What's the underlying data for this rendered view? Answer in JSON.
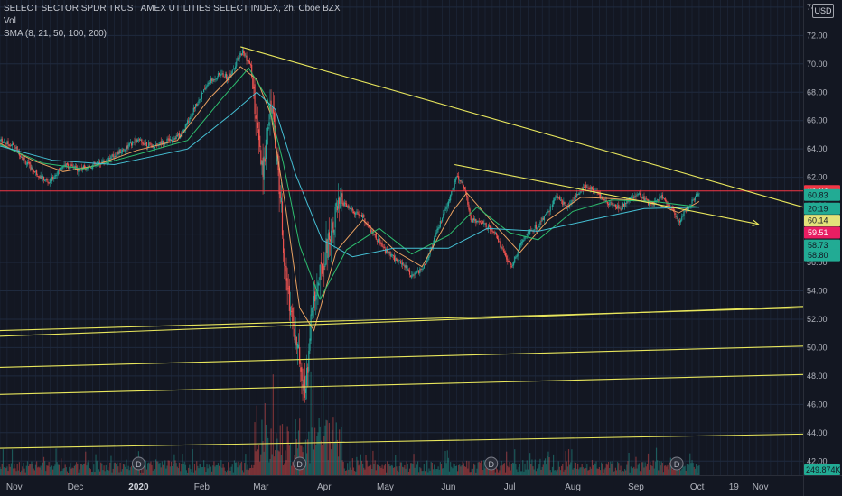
{
  "legend": {
    "title": "SELECT SECTOR SPDR TRUST AMEX UTILITIES SELECT INDEX, 2h, Cboe BZX",
    "volume": "Vol",
    "sma": "SMA (8, 21, 50, 100, 200)"
  },
  "currency_button": "USD",
  "colors": {
    "background": "#131722",
    "grid": "#1f2a3e",
    "candle_up": "#26a69a",
    "candle_down": "#ef5350",
    "trendline": "#e8e65c",
    "sma_fast": "#e9a060",
    "sma_mid": "#2dbd6e",
    "sma_slow": "#45c0d4",
    "price_tag_red": "#f23645",
    "price_tag_green": "#22ab94",
    "price_tag_yellow": "#e3e37a",
    "price_tag_magenta": "#e91e63"
  },
  "chart_data": {
    "type": "candlestick",
    "y_axis": {
      "min": 41,
      "max": 74.5,
      "ticks": [
        "42.00",
        "44.00",
        "46.00",
        "48.00",
        "50.00",
        "52.00",
        "54.00",
        "56.00",
        "58.00",
        "60.00",
        "62.00",
        "64.00",
        "66.00",
        "68.00",
        "70.00",
        "72.00",
        "74.00"
      ]
    },
    "x_axis": {
      "start": "2019-10-25",
      "end": "2020-11-22",
      "ticks": [
        {
          "label": "Nov",
          "date": "2019-11-01",
          "bold": false
        },
        {
          "label": "Dec",
          "date": "2019-12-01",
          "bold": false
        },
        {
          "label": "2020",
          "date": "2020-01-01",
          "bold": true
        },
        {
          "label": "Feb",
          "date": "2020-02-01",
          "bold": false
        },
        {
          "label": "Mar",
          "date": "2020-03-01",
          "bold": false
        },
        {
          "label": "Apr",
          "date": "2020-04-01",
          "bold": false
        },
        {
          "label": "May",
          "date": "2020-05-01",
          "bold": false
        },
        {
          "label": "Jun",
          "date": "2020-06-01",
          "bold": false
        },
        {
          "label": "Jul",
          "date": "2020-07-01",
          "bold": false
        },
        {
          "label": "Aug",
          "date": "2020-08-01",
          "bold": false
        },
        {
          "label": "Sep",
          "date": "2020-09-01",
          "bold": false
        },
        {
          "label": "Oct",
          "date": "2020-10-01",
          "bold": false
        },
        {
          "label": "19",
          "date": "2020-10-19",
          "bold": false
        },
        {
          "label": "Nov",
          "date": "2020-11-01",
          "bold": false
        }
      ]
    },
    "close_path": [
      [
        "2019-10-25",
        64.6
      ],
      [
        "2019-11-01",
        64.2
      ],
      [
        "2019-11-07",
        63.0
      ],
      [
        "2019-11-11",
        62.4
      ],
      [
        "2019-11-18",
        61.6
      ],
      [
        "2019-11-25",
        62.9
      ],
      [
        "2019-12-02",
        62.6
      ],
      [
        "2019-12-09",
        62.8
      ],
      [
        "2019-12-16",
        63.2
      ],
      [
        "2019-12-23",
        63.8
      ],
      [
        "2019-12-31",
        64.6
      ],
      [
        "2020-01-08",
        64.2
      ],
      [
        "2020-01-15",
        64.6
      ],
      [
        "2020-01-22",
        65.0
      ],
      [
        "2020-01-28",
        66.8
      ],
      [
        "2020-02-04",
        68.6
      ],
      [
        "2020-02-10",
        69.3
      ],
      [
        "2020-02-14",
        69.0
      ],
      [
        "2020-02-19",
        70.4
      ],
      [
        "2020-02-21",
        70.9
      ],
      [
        "2020-02-25",
        69.8
      ],
      [
        "2020-02-28",
        65.5
      ],
      [
        "2020-03-02",
        61.8
      ],
      [
        "2020-03-04",
        65.8
      ],
      [
        "2020-03-06",
        67.3
      ],
      [
        "2020-03-09",
        63.2
      ],
      [
        "2020-03-11",
        59.8
      ],
      [
        "2020-03-13",
        55.0
      ],
      [
        "2020-03-16",
        52.5
      ],
      [
        "2020-03-18",
        50.6
      ],
      [
        "2020-03-20",
        49.2
      ],
      [
        "2020-03-23",
        46.8
      ],
      [
        "2020-03-25",
        51.2
      ],
      [
        "2020-03-27",
        53.4
      ],
      [
        "2020-03-31",
        55.6
      ],
      [
        "2020-04-03",
        57.6
      ],
      [
        "2020-04-07",
        59.6
      ],
      [
        "2020-04-10",
        60.2
      ],
      [
        "2020-04-15",
        59.6
      ],
      [
        "2020-04-20",
        59.2
      ],
      [
        "2020-04-24",
        58.2
      ],
      [
        "2020-04-30",
        57.0
      ],
      [
        "2020-05-06",
        56.2
      ],
      [
        "2020-05-11",
        55.8
      ],
      [
        "2020-05-14",
        55.0
      ],
      [
        "2020-05-19",
        55.5
      ],
      [
        "2020-05-22",
        56.4
      ],
      [
        "2020-05-27",
        58.4
      ],
      [
        "2020-06-01",
        60.2
      ],
      [
        "2020-06-05",
        62.1
      ],
      [
        "2020-06-09",
        61.3
      ],
      [
        "2020-06-12",
        59.0
      ],
      [
        "2020-06-18",
        58.8
      ],
      [
        "2020-06-24",
        58.0
      ],
      [
        "2020-06-29",
        56.4
      ],
      [
        "2020-07-02",
        55.8
      ],
      [
        "2020-07-07",
        57.4
      ],
      [
        "2020-07-10",
        58.1
      ],
      [
        "2020-07-15",
        58.6
      ],
      [
        "2020-07-20",
        59.6
      ],
      [
        "2020-07-24",
        60.7
      ],
      [
        "2020-07-29",
        59.9
      ],
      [
        "2020-08-03",
        60.8
      ],
      [
        "2020-08-07",
        61.4
      ],
      [
        "2020-08-12",
        61.0
      ],
      [
        "2020-08-18",
        60.2
      ],
      [
        "2020-08-24",
        59.8
      ],
      [
        "2020-08-28",
        60.4
      ],
      [
        "2020-09-02",
        60.8
      ],
      [
        "2020-09-08",
        60.1
      ],
      [
        "2020-09-14",
        60.6
      ],
      [
        "2020-09-18",
        59.9
      ],
      [
        "2020-09-22",
        58.8
      ],
      [
        "2020-09-24",
        59.4
      ],
      [
        "2020-09-28",
        60.2
      ],
      [
        "2020-10-01",
        60.8
      ],
      [
        "2020-10-02",
        61.0
      ]
    ],
    "sma_lines": [
      {
        "name": "sma_fast",
        "points": [
          [
            "2019-10-25",
            64.4
          ],
          [
            "2019-11-10",
            63.2
          ],
          [
            "2019-11-25",
            62.4
          ],
          [
            "2019-12-10",
            62.8
          ],
          [
            "2019-12-31",
            63.9
          ],
          [
            "2020-01-20",
            64.6
          ],
          [
            "2020-02-05",
            67.6
          ],
          [
            "2020-02-20",
            69.8
          ],
          [
            "2020-02-28",
            68.9
          ],
          [
            "2020-03-06",
            66.4
          ],
          [
            "2020-03-13",
            60.0
          ],
          [
            "2020-03-20",
            52.8
          ],
          [
            "2020-03-27",
            51.2
          ],
          [
            "2020-04-07",
            56.8
          ],
          [
            "2020-04-20",
            59.0
          ],
          [
            "2020-05-06",
            56.8
          ],
          [
            "2020-05-19",
            55.7
          ],
          [
            "2020-06-03",
            59.6
          ],
          [
            "2020-06-10",
            60.9
          ],
          [
            "2020-06-24",
            58.6
          ],
          [
            "2020-07-06",
            56.7
          ],
          [
            "2020-07-20",
            59.0
          ],
          [
            "2020-08-05",
            60.6
          ],
          [
            "2020-08-20",
            60.5
          ],
          [
            "2020-09-08",
            60.3
          ],
          [
            "2020-09-22",
            59.5
          ],
          [
            "2020-10-02",
            60.3
          ]
        ]
      },
      {
        "name": "sma_mid",
        "points": [
          [
            "2019-10-25",
            64.3
          ],
          [
            "2019-11-15",
            63.0
          ],
          [
            "2019-12-05",
            62.6
          ],
          [
            "2019-12-31",
            63.6
          ],
          [
            "2020-01-25",
            64.6
          ],
          [
            "2020-02-10",
            67.4
          ],
          [
            "2020-02-24",
            69.7
          ],
          [
            "2020-03-04",
            67.6
          ],
          [
            "2020-03-12",
            63.0
          ],
          [
            "2020-03-20",
            57.2
          ],
          [
            "2020-03-30",
            53.4
          ],
          [
            "2020-04-12",
            56.9
          ],
          [
            "2020-04-28",
            58.4
          ],
          [
            "2020-05-14",
            56.6
          ],
          [
            "2020-06-01",
            57.9
          ],
          [
            "2020-06-15",
            59.9
          ],
          [
            "2020-07-01",
            58.1
          ],
          [
            "2020-07-15",
            57.6
          ],
          [
            "2020-08-01",
            59.6
          ],
          [
            "2020-08-20",
            60.4
          ],
          [
            "2020-09-10",
            60.3
          ],
          [
            "2020-10-02",
            59.9
          ]
        ]
      },
      {
        "name": "sma_slow",
        "points": [
          [
            "2019-10-25",
            64.2
          ],
          [
            "2019-11-20",
            63.2
          ],
          [
            "2019-12-20",
            62.9
          ],
          [
            "2020-01-25",
            64.0
          ],
          [
            "2020-02-15",
            66.4
          ],
          [
            "2020-02-28",
            68.0
          ],
          [
            "2020-03-08",
            66.8
          ],
          [
            "2020-03-18",
            62.2
          ],
          [
            "2020-03-31",
            57.6
          ],
          [
            "2020-04-15",
            56.4
          ],
          [
            "2020-05-05",
            57.0
          ],
          [
            "2020-06-01",
            57.0
          ],
          [
            "2020-06-20",
            58.4
          ],
          [
            "2020-07-15",
            58.2
          ],
          [
            "2020-08-10",
            59.0
          ],
          [
            "2020-09-05",
            59.8
          ],
          [
            "2020-10-02",
            59.9
          ]
        ]
      }
    ],
    "trendlines": [
      {
        "from": [
          "2020-02-20",
          71.2
        ],
        "to": [
          "2020-11-22",
          59.9
        ],
        "arrow": false
      },
      {
        "from": [
          "2020-06-04",
          62.9
        ],
        "to": [
          "2020-10-31",
          58.7
        ],
        "arrow": true
      },
      {
        "from": [
          "2019-10-25",
          50.8
        ],
        "to": [
          "2020-11-22",
          52.9
        ],
        "arrow": false
      },
      {
        "from": [
          "2019-10-25",
          51.2
        ],
        "to": [
          "2020-11-22",
          52.8
        ],
        "arrow": false
      },
      {
        "from": [
          "2019-10-25",
          48.6
        ],
        "to": [
          "2020-11-22",
          50.1
        ],
        "arrow": false
      },
      {
        "from": [
          "2019-10-25",
          46.7
        ],
        "to": [
          "2020-11-22",
          48.1
        ],
        "arrow": false
      },
      {
        "from": [
          "2019-10-25",
          42.9
        ],
        "to": [
          "2020-11-22",
          43.9
        ],
        "arrow": false
      }
    ],
    "horizontal_line": {
      "value": 61.04
    },
    "dividend_markers": [
      "2020-01-01",
      "2020-03-20",
      "2020-06-22",
      "2020-09-21"
    ],
    "dividend_label": "D",
    "price_tags": [
      {
        "label": "61.04",
        "value": 61.04,
        "color_key": "price_tag_red",
        "text_dark": false
      },
      {
        "label": "60.83",
        "value": 60.75,
        "color_key": "price_tag_green",
        "text_dark": true
      },
      {
        "label": "20:19",
        "value": 59.8,
        "color_key": "price_tag_green",
        "text_dark": true
      },
      {
        "label": "60.14",
        "value": 58.95,
        "color_key": "price_tag_yellow",
        "text_dark": true
      },
      {
        "label": "59.51",
        "value": 58.1,
        "color_key": "price_tag_magenta",
        "text_dark": false
      },
      {
        "label": "58.73",
        "value": 57.2,
        "color_key": "price_tag_green",
        "text_dark": true
      },
      {
        "label": "58.80",
        "value": 56.5,
        "color_key": "price_tag_green",
        "text_dark": true
      }
    ],
    "volume_label": "249.874K"
  }
}
